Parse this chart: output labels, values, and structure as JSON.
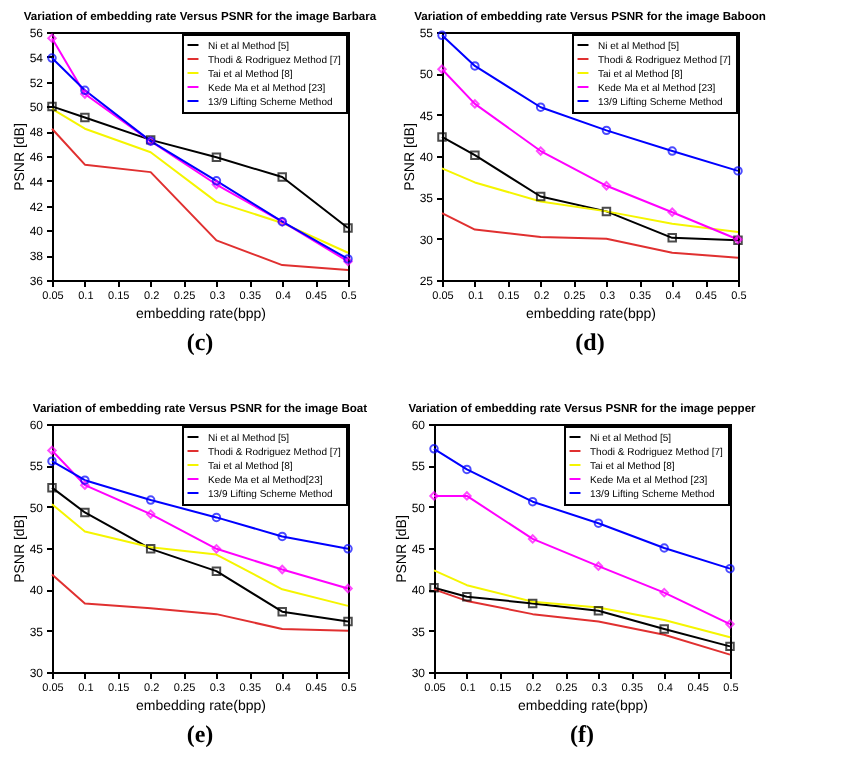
{
  "chart_data": [
    {
      "type": "line",
      "title": "Variation of embedding rate Versus PSNR for the image Barbara",
      "xlabel": "embedding rate(bpp)",
      "ylabel": "PSNR [dB]",
      "x": [
        0.05,
        0.1,
        0.2,
        0.3,
        0.4,
        0.5
      ],
      "xlim": [
        0.05,
        0.5
      ],
      "xticks": [
        0.05,
        0.1,
        0.15,
        0.2,
        0.25,
        0.3,
        0.35,
        0.4,
        0.45,
        0.5
      ],
      "ylim": [
        36,
        56
      ],
      "yticks": [
        36,
        38,
        40,
        42,
        44,
        46,
        48,
        50,
        52,
        54,
        56
      ],
      "grid": false,
      "legend": "top right",
      "annotations": [
        "(c)"
      ],
      "series": [
        {
          "name": "Ni et al Method [5]",
          "color": "#000000",
          "marker": "square",
          "values": [
            50,
            49.1,
            47.3,
            45.9,
            44.3,
            40.2
          ]
        },
        {
          "name": "Thodi & Rodriguez Method [7]",
          "color": "#e03030",
          "marker": "none",
          "values": [
            48.2,
            45.3,
            44.7,
            39.2,
            37.2,
            36.8
          ]
        },
        {
          "name": "Tai et al Method [8]",
          "color": "#f5f500",
          "marker": "none",
          "values": [
            49.8,
            48.2,
            46.3,
            42.3,
            40.6,
            38.2
          ]
        },
        {
          "name": "Kede Ma et al Method [23]",
          "color": "#ff00ff",
          "marker": "diamond",
          "values": [
            55.5,
            51,
            47.2,
            43.7,
            40.7,
            37.5
          ]
        },
        {
          "name": "13/9 Lifting Scheme Method",
          "color": "#0000ff",
          "marker": "circle",
          "values": [
            53.9,
            51.3,
            47.2,
            44,
            40.7,
            37.7
          ]
        }
      ]
    },
    {
      "type": "line",
      "title": "Variation of embedding rate Versus PSNR for the image Baboon",
      "xlabel": "embedding rate(bpp)",
      "ylabel": "PSNR [dB]",
      "x": [
        0.05,
        0.1,
        0.2,
        0.3,
        0.4,
        0.5
      ],
      "xlim": [
        0.05,
        0.5
      ],
      "xticks": [
        0.05,
        0.1,
        0.15,
        0.2,
        0.25,
        0.3,
        0.35,
        0.4,
        0.45,
        0.5
      ],
      "ylim": [
        25,
        55
      ],
      "yticks": [
        25,
        30,
        35,
        40,
        45,
        50,
        55
      ],
      "grid": false,
      "legend": "top right",
      "annotations": [
        "(d)"
      ],
      "series": [
        {
          "name": "Ni et al Method [5]",
          "color": "#000000",
          "marker": "square",
          "values": [
            42.3,
            40.1,
            35.1,
            33.3,
            30.1,
            29.8
          ]
        },
        {
          "name": "Thodi & Rodriguez Method [7]",
          "color": "#e03030",
          "marker": "none",
          "values": [
            33.1,
            31.1,
            30.2,
            30.0,
            28.3,
            27.7
          ]
        },
        {
          "name": "Tai et al Method [8]",
          "color": "#f5f500",
          "marker": "none",
          "values": [
            38.5,
            36.8,
            34.5,
            33.3,
            31.8,
            30.8
          ]
        },
        {
          "name": "Kede Ma et al Method [23]",
          "color": "#ff00ff",
          "marker": "diamond",
          "values": [
            50.5,
            46.3,
            40.6,
            36.4,
            33.2,
            29.9
          ]
        },
        {
          "name": "13/9 Lifting Scheme Method",
          "color": "#0000ff",
          "marker": "circle",
          "values": [
            54.6,
            50.9,
            45.9,
            43.1,
            40.6,
            38.2
          ]
        }
      ]
    },
    {
      "type": "line",
      "title": "Variation of embedding rate Versus PSNR for the image Boat",
      "xlabel": "embedding rate(bpp)",
      "ylabel": "PSNR [dB]",
      "x": [
        0.05,
        0.1,
        0.2,
        0.3,
        0.4,
        0.5
      ],
      "xlim": [
        0.05,
        0.5
      ],
      "xticks": [
        0.05,
        0.1,
        0.15,
        0.2,
        0.25,
        0.3,
        0.35,
        0.4,
        0.45,
        0.5
      ],
      "ylim": [
        30,
        60
      ],
      "yticks": [
        30,
        35,
        40,
        45,
        50,
        55,
        60
      ],
      "grid": false,
      "legend": "top right",
      "annotations": [
        "(e)"
      ],
      "series": [
        {
          "name": "Ni et al Method [5]",
          "color": "#000000",
          "marker": "square",
          "values": [
            52.3,
            49.3,
            44.9,
            42.2,
            37.3,
            36.1
          ]
        },
        {
          "name": "Thodi & Rodriguez Method [7]",
          "color": "#e03030",
          "marker": "none",
          "values": [
            41.8,
            38.3,
            37.7,
            37.0,
            35.2,
            35.0
          ]
        },
        {
          "name": "Tai et al Method [8]",
          "color": "#f5f500",
          "marker": "none",
          "values": [
            50.3,
            47,
            45.1,
            44.2,
            40,
            38
          ]
        },
        {
          "name": "Kede Ma et al Method[23]",
          "color": "#ff00ff",
          "marker": "diamond",
          "values": [
            56.8,
            52.6,
            49.1,
            44.9,
            42.4,
            40.1
          ]
        },
        {
          "name": "13/9 Lifting Scheme Method",
          "color": "#0000ff",
          "marker": "circle",
          "values": [
            55.5,
            53.2,
            50.8,
            48.7,
            46.4,
            44.9
          ]
        }
      ]
    },
    {
      "type": "line",
      "title": "Variation of embedding rate Versus PSNR for the image pepper",
      "xlabel": "embedding rate(bpp)",
      "ylabel": "PSNR [dB]",
      "x": [
        0.05,
        0.1,
        0.2,
        0.3,
        0.4,
        0.5
      ],
      "xlim": [
        0.05,
        0.5
      ],
      "xticks": [
        0.05,
        0.1,
        0.15,
        0.2,
        0.25,
        0.3,
        0.35,
        0.4,
        0.45,
        0.5
      ],
      "ylim": [
        30,
        60
      ],
      "yticks": [
        30,
        35,
        40,
        45,
        50,
        55,
        60
      ],
      "grid": false,
      "legend": "top right",
      "annotations": [
        "(f)"
      ],
      "series": [
        {
          "name": "Ni et al Method [5]",
          "color": "#000000",
          "marker": "square",
          "values": [
            40.2,
            39.1,
            38.3,
            37.4,
            35.2,
            33.1
          ]
        },
        {
          "name": "Thodi & Rodriguez Method [7]",
          "color": "#e03030",
          "marker": "none",
          "values": [
            40.0,
            38.6,
            37.0,
            36.1,
            34.5,
            32.1
          ]
        },
        {
          "name": "Tai et al Method [8]",
          "color": "#f5f500",
          "marker": "none",
          "values": [
            42.3,
            40.5,
            38.5,
            37.8,
            36.3,
            34.2
          ]
        },
        {
          "name": "Kede Ma et al Method [23]",
          "color": "#ff00ff",
          "marker": "diamond",
          "values": [
            51.3,
            51.3,
            46.1,
            42.8,
            39.6,
            35.8
          ]
        },
        {
          "name": "13/9 Lifting Scheme Method",
          "color": "#0000ff",
          "marker": "circle",
          "values": [
            57,
            54.5,
            50.6,
            48,
            45,
            42.5
          ]
        }
      ]
    }
  ]
}
